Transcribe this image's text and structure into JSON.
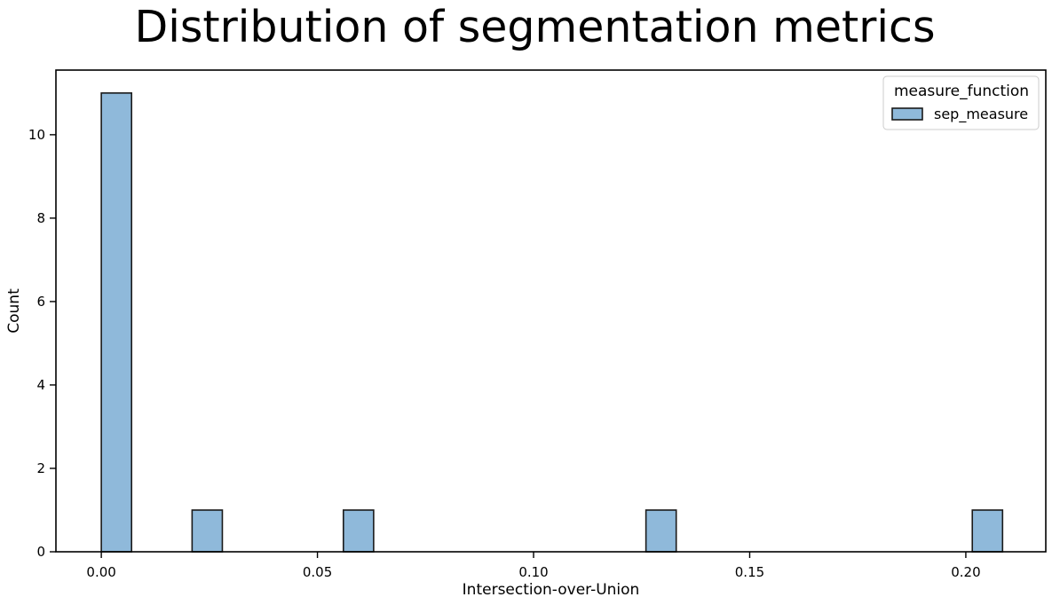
{
  "chart_data": {
    "type": "histogram",
    "title": "Distribution of segmentation metrics",
    "xlabel": "Intersection-over-Union",
    "ylabel": "Count",
    "xlim": [
      -0.0105,
      0.2185
    ],
    "ylim": [
      0,
      11.55
    ],
    "xticks": [
      0.0,
      0.05,
      0.1,
      0.15,
      0.2
    ],
    "xtick_labels": [
      "0.00",
      "0.05",
      "0.10",
      "0.15",
      "0.20"
    ],
    "yticks": [
      0,
      2,
      4,
      6,
      8,
      10
    ],
    "ytick_labels": [
      "0",
      "2",
      "4",
      "6",
      "8",
      "10"
    ],
    "legend": {
      "title": "measure_function",
      "position": "top-right",
      "entries": [
        "sep_measure"
      ]
    },
    "bar_color": "#8fb9da",
    "edge_color": "#1a1a1a",
    "series": [
      {
        "name": "sep_measure",
        "bins": [
          {
            "x0": 0.0,
            "x1": 0.007,
            "count": 11
          },
          {
            "x0": 0.021,
            "x1": 0.028,
            "count": 1
          },
          {
            "x0": 0.056,
            "x1": 0.063,
            "count": 1
          },
          {
            "x0": 0.126,
            "x1": 0.133,
            "count": 1
          },
          {
            "x0": 0.2015,
            "x1": 0.2085,
            "count": 1
          }
        ]
      }
    ]
  }
}
